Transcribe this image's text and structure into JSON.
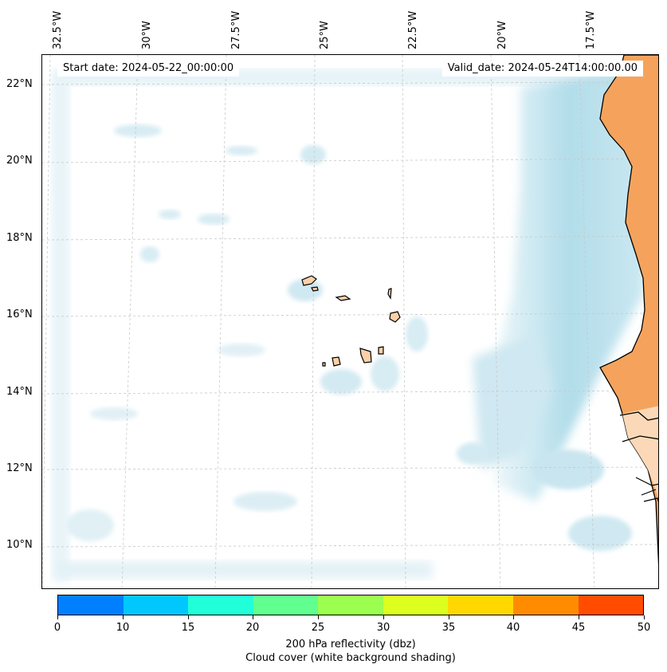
{
  "header": {
    "start_date": "Start date: 2024-05-22_00:00:00",
    "valid_date": "Valid_date: 2024-05-24T14:00:00.00"
  },
  "map": {
    "longitude_labels": [
      "32.5°W",
      "30°W",
      "27.5°W",
      "25°W",
      "22.5°W",
      "20°W",
      "17.5°W"
    ],
    "latitude_labels": [
      "22°N",
      "20°N",
      "18°N",
      "16°N",
      "14°N",
      "12°N",
      "10°N"
    ],
    "colors": {
      "land": "#f5a35c",
      "cloud": "#a9d9e8",
      "coastline": "#000000",
      "gridline": "#c8c8c8"
    }
  },
  "colorbar": {
    "ticks": [
      "0",
      "10",
      "15",
      "20",
      "25",
      "30",
      "35",
      "40",
      "45",
      "50"
    ],
    "colors": [
      "#0080ff",
      "#00c8ff",
      "#20ffd8",
      "#60ff90",
      "#9cff50",
      "#dcff20",
      "#ffd800",
      "#ff8c00",
      "#ff4c00"
    ],
    "title_line1": "200 hPa reflectivity (dbz)",
    "title_line2": "Cloud cover (white background shading)"
  }
}
